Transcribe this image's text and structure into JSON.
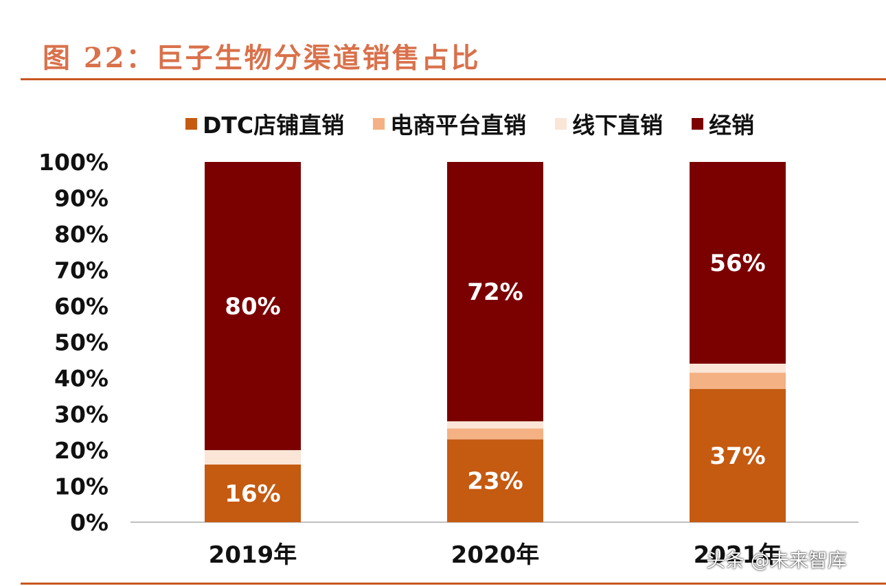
{
  "header": {
    "title": "图 22：巨子生物分渠道销售占比"
  },
  "watermark": "头条 @未来智库",
  "colors": {
    "accent": "#c8561f",
    "title": "#d9714b",
    "dtc": "#c55a11",
    "ecommerce": "#f4b183",
    "offline": "#fbe5d6",
    "distribution": "#7b0000"
  },
  "chart_data": {
    "type": "bar",
    "stacked": true,
    "legend_position": "top",
    "grid": false,
    "categories": [
      "2019年",
      "2020年",
      "2021年"
    ],
    "ylim": [
      0,
      100
    ],
    "yticks": [
      "0%",
      "10%",
      "20%",
      "30%",
      "40%",
      "50%",
      "60%",
      "70%",
      "80%",
      "90%",
      "100%"
    ],
    "series": [
      {
        "name": "DTC店铺直销",
        "color": "#c55a11",
        "values": [
          16,
          23,
          37
        ],
        "labels": [
          "16%",
          "23%",
          "37%"
        ]
      },
      {
        "name": "电商平台直销",
        "color": "#f4b183",
        "values": [
          0,
          3,
          4.5
        ],
        "labels": [
          "",
          "",
          ""
        ]
      },
      {
        "name": "线下直销",
        "color": "#fbe5d6",
        "values": [
          4,
          2,
          2.5
        ],
        "labels": [
          "",
          "",
          ""
        ]
      },
      {
        "name": "经销",
        "color": "#7b0000",
        "values": [
          80,
          72,
          56
        ],
        "labels": [
          "80%",
          "72%",
          "56%"
        ]
      }
    ]
  }
}
